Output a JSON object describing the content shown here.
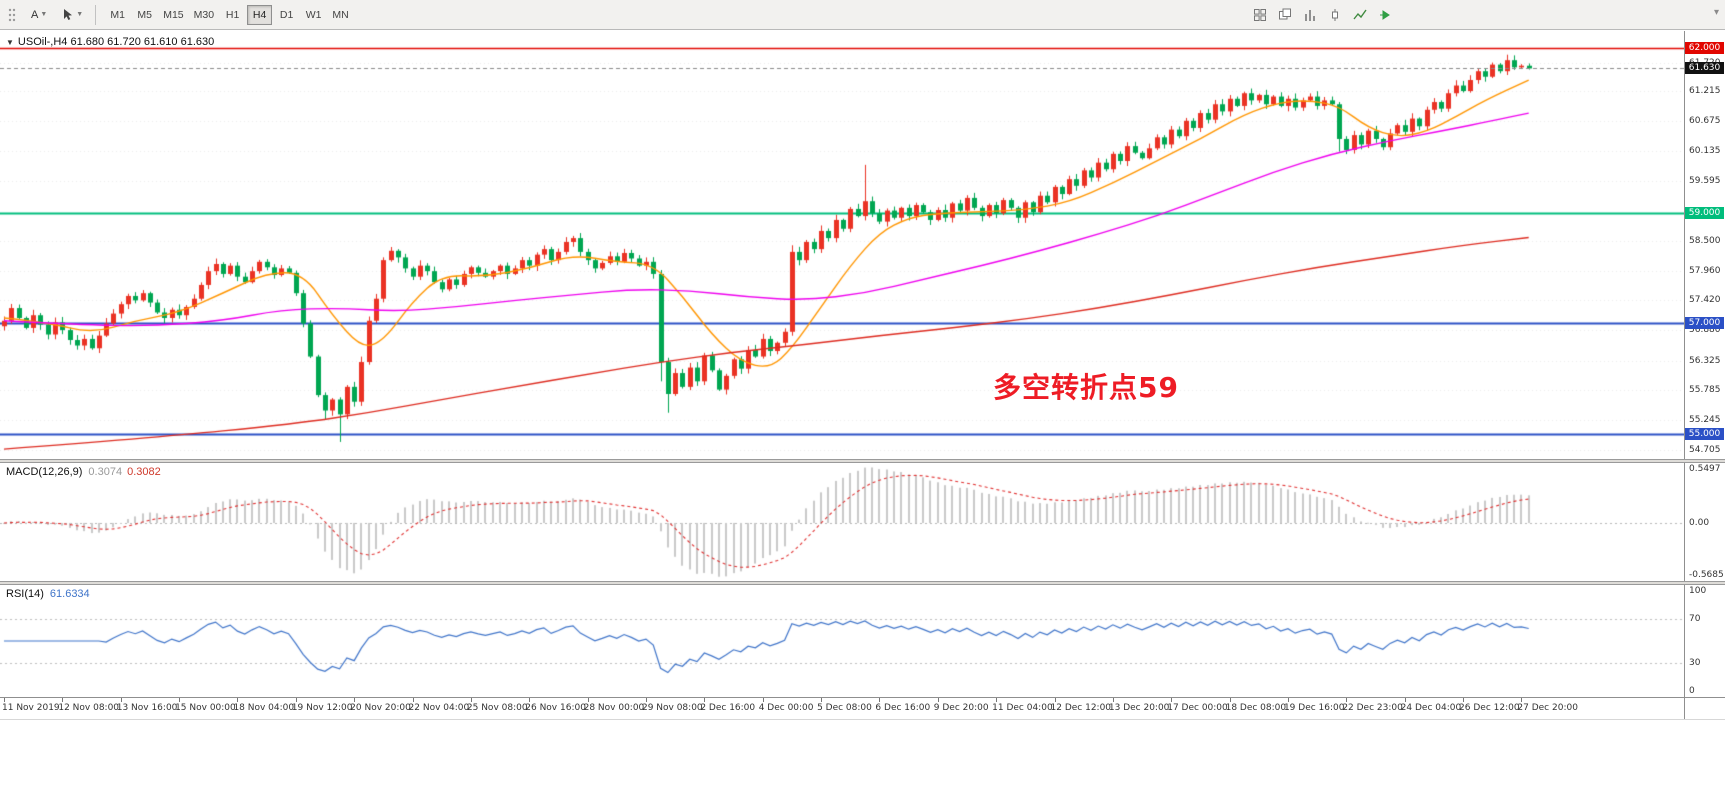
{
  "toolbar": {
    "text_tool_label": "A",
    "timeframes": [
      {
        "label": "M1",
        "active": false
      },
      {
        "label": "M5",
        "active": false
      },
      {
        "label": "M15",
        "active": false
      },
      {
        "label": "M30",
        "active": false
      },
      {
        "label": "H1",
        "active": false
      },
      {
        "label": "H4",
        "active": true
      },
      {
        "label": "D1",
        "active": false
      },
      {
        "label": "W1",
        "active": false
      },
      {
        "label": "MN",
        "active": false
      }
    ],
    "chart_tool_icons": [
      "tile-windows",
      "cascade-windows",
      "bar-chart",
      "candlestick-chart",
      "line-chart",
      "auto-scroll"
    ]
  },
  "chart": {
    "title": "USOil-,H4 61.680 61.720 61.610 61.630",
    "expander_glyph": "▼",
    "annotation": {
      "text": "多空转折点59",
      "color": "#ee1c25"
    },
    "bid": {
      "price": 61.63,
      "label": "61.630",
      "tag_bg": "#111111"
    },
    "levels": [
      {
        "price": 62.0,
        "label": "62.000",
        "color": "#e10600",
        "tag_bg": "#e10600",
        "width": 1.6
      },
      {
        "price": 59.0,
        "label": "59.000",
        "color": "#00bd7c",
        "tag_bg": "#00bd7c",
        "width": 2
      },
      {
        "price": 57.0,
        "label": "57.000",
        "color": "#2b50c6",
        "tag_bg": "#2b50c6",
        "width": 2
      },
      {
        "price": 55.0,
        "label": "55.000",
        "color": "#2b50c6",
        "tag_bg": "#2b50c6",
        "width": 2
      }
    ],
    "axis_labels": [
      "61.720",
      "61.215",
      "60.675",
      "60.135",
      "59.595",
      "58.500",
      "57.960",
      "57.420",
      "56.880",
      "56.325",
      "55.785",
      "55.245",
      "54.705"
    ]
  },
  "macd": {
    "name": "MACD(12,26,9)",
    "value_main": "0.3074",
    "value_signal": "0.3082",
    "axis_top": "0.5497",
    "axis_zero": "0.00",
    "axis_bottom": "-0.5685"
  },
  "rsi": {
    "name": "RSI(14)",
    "value": "61.6334",
    "axis_top": "100",
    "axis_upper": "70",
    "axis_lower": "30",
    "axis_bottom": "0"
  },
  "chart_data": {
    "type": "candlestick",
    "symbol": "USOil-",
    "timeframe": "H4",
    "ohlc": {
      "open": 61.68,
      "high": 61.72,
      "low": 61.61,
      "close": 61.63
    },
    "price_range": [
      54.54,
      62.31
    ],
    "first_open": 56.95,
    "closes": [
      57.05,
      57.28,
      57.1,
      56.92,
      57.15,
      56.98,
      56.8,
      57.02,
      56.88,
      56.7,
      56.6,
      56.72,
      56.55,
      56.78,
      57.0,
      57.18,
      57.35,
      57.5,
      57.42,
      57.55,
      57.38,
      57.2,
      57.1,
      57.25,
      57.15,
      57.3,
      57.45,
      57.7,
      57.95,
      58.08,
      57.9,
      58.05,
      57.85,
      57.75,
      57.95,
      58.12,
      58.02,
      57.88,
      58.0,
      57.92,
      57.55,
      57.0,
      56.4,
      55.7,
      55.42,
      55.62,
      55.35,
      55.85,
      55.58,
      56.3,
      57.05,
      57.45,
      58.15,
      58.32,
      58.2,
      58.0,
      57.85,
      58.05,
      57.95,
      57.75,
      57.62,
      57.8,
      57.7,
      57.9,
      58.02,
      57.92,
      57.85,
      57.95,
      58.05,
      57.9,
      58.0,
      58.15,
      58.05,
      58.25,
      58.35,
      58.15,
      58.3,
      58.48,
      58.55,
      58.3,
      58.15,
      58.0,
      58.1,
      58.22,
      58.12,
      58.28,
      58.18,
      58.05,
      58.12,
      57.9,
      56.3,
      55.72,
      56.1,
      55.85,
      56.2,
      55.95,
      56.42,
      56.15,
      55.8,
      56.05,
      56.35,
      56.18,
      56.52,
      56.4,
      56.72,
      56.5,
      56.65,
      56.85,
      58.3,
      58.15,
      58.48,
      58.35,
      58.68,
      58.55,
      58.88,
      58.72,
      59.08,
      58.95,
      59.22,
      59.0,
      58.85,
      59.05,
      58.92,
      59.1,
      58.95,
      59.15,
      59.02,
      58.88,
      59.06,
      58.92,
      59.18,
      59.05,
      59.28,
      59.1,
      58.95,
      59.15,
      59.0,
      59.24,
      59.1,
      58.92,
      59.2,
      59.02,
      59.32,
      59.2,
      59.48,
      59.35,
      59.62,
      59.5,
      59.78,
      59.65,
      59.92,
      59.8,
      60.08,
      59.95,
      60.22,
      60.1,
      60.0,
      60.18,
      60.38,
      60.25,
      60.52,
      60.4,
      60.68,
      60.55,
      60.82,
      60.7,
      60.98,
      60.85,
      61.08,
      60.95,
      61.18,
      61.05,
      61.15,
      60.98,
      61.12,
      60.95,
      61.08,
      60.92,
      61.05,
      61.12,
      60.95,
      61.05,
      60.98,
      60.35,
      60.15,
      60.42,
      60.25,
      60.5,
      60.35,
      60.2,
      60.45,
      60.6,
      60.48,
      60.72,
      60.58,
      60.88,
      61.02,
      60.9,
      61.18,
      61.32,
      61.22,
      61.42,
      61.58,
      61.48,
      61.7,
      61.58,
      61.78,
      61.65,
      61.68,
      61.63
    ],
    "wick_overrides": {
      "44": {
        "low": 55.25
      },
      "46": {
        "low": 54.85
      },
      "90": {
        "low": 55.95
      },
      "91": {
        "low": 55.38
      },
      "108": {
        "high": 58.42
      },
      "118": {
        "high": 59.88
      },
      "183": {
        "low": 60.12
      },
      "206": {
        "high": 61.88
      },
      "209": {
        "high": 61.72,
        "low": 61.61
      }
    },
    "label_every_bars": 8,
    "time_labels": [
      "11 Nov 2019",
      "12 Nov 08:00",
      "13 Nov 16:00",
      "15 Nov 00:00",
      "18 Nov 04:00",
      "19 Nov 12:00",
      "20 Nov 20:00",
      "22 Nov 04:00",
      "25 Nov 08:00",
      "26 Nov 16:00",
      "28 Nov 00:00",
      "29 Nov 08:00",
      "2 Dec 16:00",
      "4 Dec 00:00",
      "5 Dec 08:00",
      "6 Dec 16:00",
      "9 Dec 20:00",
      "11 Dec 04:00",
      "12 Dec 12:00",
      "13 Dec 20:00",
      "17 Dec 00:00",
      "18 Dec 08:00",
      "19 Dec 16:00",
      "22 Dec 23:00",
      "24 Dec 04:00",
      "26 Dec 12:00",
      "27 Dec 20:00"
    ],
    "moving_averages": [
      {
        "name": "ma-fast",
        "color": "#ff9500",
        "points": [
          [
            0,
            57.1
          ],
          [
            6,
            57.02
          ],
          [
            12,
            56.82
          ],
          [
            18,
            57.05
          ],
          [
            24,
            57.2
          ],
          [
            30,
            57.55
          ],
          [
            36,
            57.92
          ],
          [
            41,
            57.92
          ],
          [
            45,
            57.15
          ],
          [
            49,
            56.55
          ],
          [
            52,
            56.68
          ],
          [
            56,
            57.4
          ],
          [
            60,
            57.88
          ],
          [
            66,
            57.85
          ],
          [
            72,
            58.0
          ],
          [
            78,
            58.25
          ],
          [
            84,
            58.12
          ],
          [
            89,
            58.08
          ],
          [
            93,
            57.5
          ],
          [
            97,
            56.8
          ],
          [
            101,
            56.3
          ],
          [
            105,
            56.18
          ],
          [
            108,
            56.55
          ],
          [
            112,
            57.3
          ],
          [
            116,
            58.05
          ],
          [
            120,
            58.65
          ],
          [
            124,
            58.92
          ],
          [
            128,
            59.0
          ],
          [
            134,
            59.03
          ],
          [
            140,
            59.06
          ],
          [
            146,
            59.2
          ],
          [
            152,
            59.55
          ],
          [
            158,
            59.95
          ],
          [
            164,
            60.35
          ],
          [
            170,
            60.8
          ],
          [
            175,
            61.02
          ],
          [
            179,
            61.05
          ],
          [
            183,
            60.95
          ],
          [
            187,
            60.55
          ],
          [
            191,
            60.38
          ],
          [
            195,
            60.48
          ],
          [
            199,
            60.75
          ],
          [
            203,
            61.05
          ],
          [
            209,
            61.42
          ]
        ]
      },
      {
        "name": "ma-medium",
        "color": "#ee00ee",
        "points": [
          [
            0,
            57.05
          ],
          [
            10,
            56.98
          ],
          [
            20,
            56.95
          ],
          [
            30,
            57.05
          ],
          [
            38,
            57.25
          ],
          [
            46,
            57.28
          ],
          [
            54,
            57.22
          ],
          [
            62,
            57.3
          ],
          [
            70,
            57.42
          ],
          [
            78,
            57.52
          ],
          [
            86,
            57.62
          ],
          [
            94,
            57.6
          ],
          [
            102,
            57.48
          ],
          [
            110,
            57.42
          ],
          [
            118,
            57.55
          ],
          [
            126,
            57.8
          ],
          [
            134,
            58.05
          ],
          [
            142,
            58.32
          ],
          [
            150,
            58.62
          ],
          [
            158,
            58.95
          ],
          [
            166,
            59.35
          ],
          [
            174,
            59.75
          ],
          [
            182,
            60.08
          ],
          [
            190,
            60.32
          ],
          [
            198,
            60.52
          ],
          [
            204,
            60.68
          ],
          [
            209,
            60.82
          ]
        ]
      },
      {
        "name": "ma-slow",
        "color": "#dd2b20",
        "points": [
          [
            0,
            54.72
          ],
          [
            20,
            54.92
          ],
          [
            40,
            55.18
          ],
          [
            50,
            55.38
          ],
          [
            60,
            55.62
          ],
          [
            70,
            55.85
          ],
          [
            80,
            56.08
          ],
          [
            90,
            56.3
          ],
          [
            100,
            56.48
          ],
          [
            110,
            56.62
          ],
          [
            120,
            56.78
          ],
          [
            130,
            56.92
          ],
          [
            140,
            57.08
          ],
          [
            150,
            57.28
          ],
          [
            160,
            57.52
          ],
          [
            170,
            57.78
          ],
          [
            180,
            58.02
          ],
          [
            190,
            58.22
          ],
          [
            200,
            58.42
          ],
          [
            209,
            58.56
          ]
        ]
      }
    ],
    "macd": {
      "fast": 12,
      "slow": 26,
      "signal": 9,
      "histogram_color": "#c9c9c9",
      "signal_color": "#e03131"
    },
    "rsi": {
      "period": 14,
      "color": "#3f74c9",
      "levels": [
        30,
        70
      ],
      "scale": [
        0,
        100
      ]
    },
    "colors": {
      "up": "#ea3224",
      "down": "#00a651",
      "grid": "#ebebeb",
      "bid_line": "#888888"
    }
  }
}
